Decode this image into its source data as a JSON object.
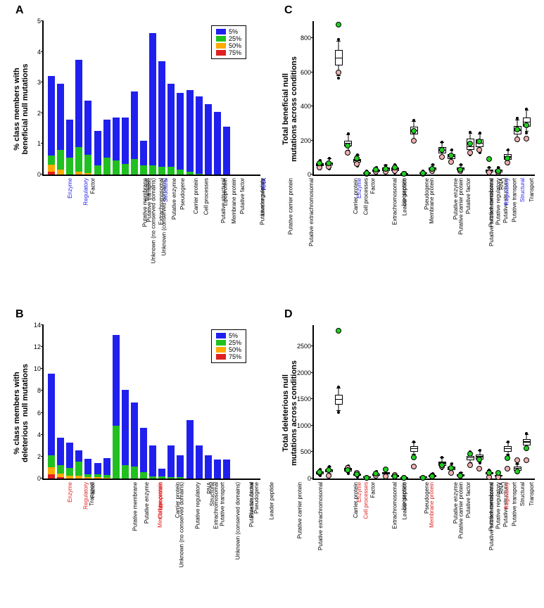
{
  "colors": {
    "blue": "#2020ee",
    "green": "#20c020",
    "orange": "#ffaa00",
    "red": "#e02020",
    "pink": "#eeb0b0",
    "brightgreen": "#20d020",
    "axiscolor": "#000000",
    "highlight_blue": "#2020ee",
    "highlight_red": "#e02020"
  },
  "legend_items": [
    {
      "label": "5%",
      "color": "#2020ee"
    },
    {
      "label": "25%",
      "color": "#20c020"
    },
    {
      "label": "50%",
      "color": "#ffaa00"
    },
    {
      "label": "75%",
      "color": "#e02020"
    }
  ],
  "panelA": {
    "label": "A",
    "ylabel": "% class members with\nbeneficial null mutations",
    "ymax": 5,
    "ytick_step": 1,
    "bars": [
      {
        "cat": "Enzyme",
        "hl": "blue",
        "segs": [
          0.1,
          0.22,
          0.3,
          2.6
        ]
      },
      {
        "cat": "Regulatory",
        "hl": "blue",
        "segs": [
          0,
          0.15,
          0.65,
          2.15
        ]
      },
      {
        "cat": "Unknown (no conserved domains)",
        "segs": [
          0,
          0,
          0.55,
          1.25
        ]
      },
      {
        "cat": "Factor",
        "segs": [
          0,
          0.1,
          0.8,
          2.85
        ]
      },
      {
        "cat": "Unknown (conserved domains)",
        "segs": [
          0,
          0.05,
          0.6,
          1.75
        ]
      },
      {
        "cat": "Putative membrane",
        "segs": [
          0,
          0,
          0.3,
          1.12
        ]
      },
      {
        "cat": "Putative transport",
        "segs": [
          0,
          0,
          0.55,
          1.25
        ]
      },
      {
        "cat": "Extrachromosomal",
        "segs": [
          0,
          0,
          0.45,
          1.4
        ]
      },
      {
        "cat": "Transport",
        "segs": [
          0,
          0,
          0.35,
          1.5
        ]
      },
      {
        "cat": "Putative enzyme",
        "segs": [
          0,
          0,
          0.5,
          2.2
        ]
      },
      {
        "cat": "Structural",
        "hl": "blue",
        "segs": [
          0,
          0,
          0.3,
          0.8
        ]
      },
      {
        "cat": "Pseudogene",
        "segs": [
          0,
          0,
          0.3,
          4.3
        ]
      },
      {
        "cat": "Carrier protein",
        "segs": [
          0,
          0,
          0.25,
          3.45
        ]
      },
      {
        "cat": "Cell processes",
        "segs": [
          0,
          0,
          0.25,
          2.7
        ]
      },
      {
        "cat": "Putative structural",
        "segs": [
          0,
          0,
          0.15,
          2.5
        ]
      },
      {
        "cat": "Membrane protein",
        "segs": [
          0,
          0,
          0.1,
          2.65
        ]
      },
      {
        "cat": "Lipoprotein",
        "segs": [
          0,
          0,
          0.02,
          2.53
        ]
      },
      {
        "cat": "Putative factor",
        "segs": [
          0,
          0,
          0,
          2.3
        ]
      },
      {
        "cat": "Putative regulatory",
        "segs": [
          0,
          0,
          0,
          2.05
        ]
      },
      {
        "cat": "Leader peptide",
        "segs": [
          0,
          0,
          0,
          1.55
        ]
      },
      {
        "cat": "Putative carrier protein",
        "segs": [
          0,
          0,
          0,
          0
        ]
      },
      {
        "cat": "Putative extrachromosomal",
        "segs": [
          0,
          0,
          0,
          0
        ]
      },
      {
        "cat": "RNA",
        "hl": "blue",
        "segs": [
          0,
          0,
          0,
          0
        ]
      }
    ]
  },
  "panelB": {
    "label": "B",
    "ylabel": "% class members with\ndeleterious  null mutations",
    "ymax": 14,
    "ytick_step": 2,
    "bars": [
      {
        "cat": "Enzyme",
        "hl": "red",
        "segs": [
          0.4,
          0.65,
          1.1,
          7.45
        ]
      },
      {
        "cat": "Regulatory",
        "hl": "red",
        "segs": [
          0.15,
          0.3,
          0.75,
          2.55
        ]
      },
      {
        "cat": "Transport",
        "segs": [
          0,
          0.25,
          0.7,
          2.3
        ]
      },
      {
        "cat": "Factor",
        "segs": [
          0,
          0.25,
          1.3,
          1.0
        ]
      },
      {
        "cat": "Putative membrane",
        "segs": [
          0,
          0.1,
          0.3,
          1.4
        ]
      },
      {
        "cat": "Unknown (no conserved domains)",
        "segs": [
          0,
          0.1,
          0.3,
          1.0
        ]
      },
      {
        "cat": "Putative enzyme",
        "segs": [
          0,
          0.05,
          0.25,
          1.55
        ]
      },
      {
        "cat": "Membrane protein",
        "hl": "red",
        "segs": [
          0,
          0,
          4.8,
          8.3
        ]
      },
      {
        "cat": "Cell processes",
        "hl": "red",
        "segs": [
          0,
          0,
          1.2,
          6.9
        ]
      },
      {
        "cat": "Lipoprotein",
        "hl": "red",
        "segs": [
          0,
          0,
          1.1,
          5.85
        ]
      },
      {
        "cat": "Carrier protein",
        "segs": [
          0,
          0,
          0.6,
          4.0
        ]
      },
      {
        "cat": "Putative regulatory",
        "segs": [
          0,
          0,
          0.2,
          2.85
        ]
      },
      {
        "cat": "Unknown (conserved domains)",
        "segs": [
          0,
          0,
          0.2,
          0.7
        ]
      },
      {
        "cat": "Extrachromosomal",
        "segs": [
          0,
          0,
          0.15,
          2.85
        ]
      },
      {
        "cat": "Putative transport",
        "segs": [
          0,
          0,
          0.15,
          2.0
        ]
      },
      {
        "cat": "Structural",
        "segs": [
          0,
          0,
          0,
          5.3
        ]
      },
      {
        "cat": "RNA",
        "segs": [
          0,
          0,
          0,
          3.05
        ]
      },
      {
        "cat": "Putative structural",
        "segs": [
          0,
          0,
          0,
          2.15
        ]
      },
      {
        "cat": "Putative factor",
        "segs": [
          0,
          0,
          0,
          1.75
        ]
      },
      {
        "cat": "Pseudogene",
        "segs": [
          0,
          0,
          0,
          1.75
        ]
      },
      {
        "cat": "Leader peptide",
        "segs": [
          0,
          0,
          0,
          0
        ]
      },
      {
        "cat": "Putative carrier protein",
        "segs": [
          0,
          0,
          0,
          0
        ]
      },
      {
        "cat": "Putative extrachromosomal",
        "segs": [
          0,
          0,
          0,
          0
        ]
      }
    ]
  },
  "panelC": {
    "label": "C",
    "ylabel": "Total beneficial null\nmutations across conditions",
    "ymax": 900,
    "ytick_step": 200,
    "categories": [
      {
        "cat": "Carrier protein",
        "med": 55,
        "q1": 48,
        "q3": 65,
        "lo": 35,
        "hi": 80,
        "pink": 40,
        "green": 65
      },
      {
        "cat": "Cell processes",
        "med": 60,
        "q1": 52,
        "q3": 72,
        "lo": 38,
        "hi": 90,
        "pink": 45,
        "green": 65
      },
      {
        "cat": "Enzyme",
        "hl": "blue",
        "med": 680,
        "q1": 640,
        "q3": 730,
        "lo": 580,
        "hi": 780,
        "pink": 600,
        "green": 880
      },
      {
        "cat": "Extrachromosomal",
        "med": 180,
        "q1": 165,
        "q3": 200,
        "lo": 140,
        "hi": 230,
        "pink": 130,
        "green": 170
      },
      {
        "cat": "Factor",
        "med": 80,
        "q1": 70,
        "q3": 92,
        "lo": 55,
        "hi": 110,
        "pink": 60,
        "green": 95
      },
      {
        "cat": "Leader peptide",
        "med": 8,
        "q1": 5,
        "q3": 12,
        "lo": 2,
        "hi": 18,
        "pink": 5,
        "green": 10
      },
      {
        "cat": "Lipoprotein",
        "med": 22,
        "q1": 17,
        "q3": 30,
        "lo": 10,
        "hi": 40,
        "pink": 15,
        "green": 30
      },
      {
        "cat": "Membrane protein",
        "med": 30,
        "q1": 22,
        "q3": 40,
        "lo": 12,
        "hi": 52,
        "pink": 18,
        "green": 32
      },
      {
        "cat": "Pseudogene",
        "med": 30,
        "q1": 22,
        "q3": 40,
        "lo": 12,
        "hi": 55,
        "pink": 20,
        "green": 40
      },
      {
        "cat": "Putative carrier protein",
        "med": 4,
        "q1": 2,
        "q3": 7,
        "lo": 0,
        "hi": 12,
        "pink": 3,
        "green": 5
      },
      {
        "cat": "Putative enzyme",
        "med": 255,
        "q1": 235,
        "q3": 280,
        "lo": 205,
        "hi": 310,
        "pink": 200,
        "green": 255
      },
      {
        "cat": "Putative extrachromosomal",
        "med": 7,
        "q1": 4,
        "q3": 12,
        "lo": 1,
        "hi": 18,
        "pink": 5,
        "green": 8
      },
      {
        "cat": "Putative factor",
        "med": 32,
        "q1": 25,
        "q3": 42,
        "lo": 15,
        "hi": 55,
        "pink": 22,
        "green": 33
      },
      {
        "cat": "Putative membrane",
        "med": 140,
        "q1": 125,
        "q3": 160,
        "lo": 105,
        "hi": 185,
        "pink": 105,
        "green": 145
      },
      {
        "cat": "Putative regulatory",
        "med": 105,
        "q1": 90,
        "q3": 120,
        "lo": 75,
        "hi": 140,
        "pink": 75,
        "green": 110
      },
      {
        "cat": "Putative structural",
        "med": 32,
        "q1": 25,
        "q3": 42,
        "lo": 15,
        "hi": 55,
        "pink": 22,
        "green": 30
      },
      {
        "cat": "Putative transport",
        "med": 160,
        "q1": 145,
        "q3": 210,
        "lo": 120,
        "hi": 240,
        "pink": 130,
        "green": 180
      },
      {
        "cat": "Regulatory",
        "hl": "blue",
        "med": 180,
        "q1": 160,
        "q3": 205,
        "lo": 135,
        "hi": 235,
        "pink": 145,
        "green": 195
      },
      {
        "cat": "RNA",
        "med": 20,
        "q1": 14,
        "q3": 28,
        "lo": 8,
        "hi": 38,
        "pink": 12,
        "green": 90
      },
      {
        "cat": "Structural",
        "hl": "blue",
        "med": 20,
        "q1": 14,
        "q3": 28,
        "lo": 8,
        "hi": 38,
        "pink": 13,
        "green": 22
      },
      {
        "cat": "Transport",
        "med": 100,
        "q1": 85,
        "q3": 118,
        "lo": 68,
        "hi": 140,
        "pink": 72,
        "green": 95
      },
      {
        "cat": "Unknown (conserved domains)",
        "med": 258,
        "q1": 235,
        "q3": 285,
        "lo": 205,
        "hi": 320,
        "pink": 205,
        "green": 265
      },
      {
        "cat": "Unknown (no conserved domains)",
        "med": 305,
        "q1": 280,
        "q3": 335,
        "lo": 250,
        "hi": 375,
        "pink": 210,
        "green": 290
      }
    ]
  },
  "panelD": {
    "label": "D",
    "ylabel": "Total deleterious null\nmutations across conditions",
    "ymax": 2900,
    "ytick_step": 500,
    "categories": [
      {
        "cat": "Carrier protein",
        "med": 100,
        "q1": 80,
        "q3": 130,
        "lo": 55,
        "hi": 165,
        "pink": 110,
        "green": 125
      },
      {
        "cat": "Cell processes",
        "hl": "red",
        "med": 140,
        "q1": 115,
        "q3": 175,
        "lo": 85,
        "hi": 215,
        "pink": 60,
        "green": 165
      },
      {
        "cat": "Enzyme",
        "hl": "red",
        "med": 1490,
        "q1": 1400,
        "q3": 1580,
        "lo": 1280,
        "hi": 1700,
        "pink": null,
        "green": 2800
      },
      {
        "cat": "Extrachromosomal",
        "med": 160,
        "q1": 135,
        "q3": 195,
        "lo": 100,
        "hi": 235,
        "pink": 200,
        "green": 155
      },
      {
        "cat": "Factor",
        "med": 70,
        "q1": 55,
        "q3": 90,
        "lo": 35,
        "hi": 115,
        "pink": 100,
        "green": 85
      },
      {
        "cat": "Leader peptide",
        "med": 12,
        "q1": 7,
        "q3": 20,
        "lo": 2,
        "hi": 30,
        "pink": 10,
        "green": 12
      },
      {
        "cat": "Lipoprotein",
        "med": 75,
        "q1": 58,
        "q3": 98,
        "lo": 40,
        "hi": 130,
        "pink": 55,
        "green": 95
      },
      {
        "cat": "Membrane protein",
        "hl": "red",
        "med": 95,
        "q1": 75,
        "q3": 120,
        "lo": 50,
        "hi": 150,
        "pink": 40,
        "green": 175
      },
      {
        "cat": "Pseudogene",
        "med": 45,
        "q1": 33,
        "q3": 62,
        "lo": 20,
        "hi": 85,
        "pink": 70,
        "green": 40
      },
      {
        "cat": "Putative carrier protein",
        "med": 10,
        "q1": 6,
        "q3": 17,
        "lo": 2,
        "hi": 28,
        "pink": 8,
        "green": 10
      },
      {
        "cat": "Putative enzyme",
        "med": 555,
        "q1": 510,
        "q3": 610,
        "lo": 450,
        "hi": 680,
        "pink": 230,
        "green": 400
      },
      {
        "cat": "Putative extrachromosomal",
        "med": 12,
        "q1": 7,
        "q3": 20,
        "lo": 2,
        "hi": 30,
        "pink": 10,
        "green": 12
      },
      {
        "cat": "Putative factor",
        "med": 45,
        "q1": 33,
        "q3": 62,
        "lo": 20,
        "hi": 85,
        "pink": 50,
        "green": 45
      },
      {
        "cat": "Putative membrane",
        "med": 280,
        "q1": 245,
        "q3": 325,
        "lo": 200,
        "hi": 380,
        "pink": 230,
        "green": 255
      },
      {
        "cat": "Putative regulatory",
        "med": 190,
        "q1": 160,
        "q3": 225,
        "lo": 125,
        "hi": 270,
        "pink": 100,
        "green": 205
      },
      {
        "cat": "Putative structural",
        "med": 55,
        "q1": 42,
        "q3": 75,
        "lo": 26,
        "hi": 100,
        "pink": 55,
        "green": 55
      },
      {
        "cat": "Putative transport",
        "med": 380,
        "q1": 340,
        "q3": 430,
        "lo": 290,
        "hi": 490,
        "pink": 250,
        "green": 465
      },
      {
        "cat": "Regulatory",
        "hl": "red",
        "med": 400,
        "q1": 355,
        "q3": 455,
        "lo": 300,
        "hi": 515,
        "pink": 190,
        "green": 365
      },
      {
        "cat": "RNA",
        "med": 95,
        "q1": 75,
        "q3": 120,
        "lo": 50,
        "hi": 150,
        "pink": 30,
        "green": 105
      },
      {
        "cat": "Structural",
        "med": 50,
        "q1": 38,
        "q3": 70,
        "lo": 23,
        "hi": 95,
        "pink": 30,
        "green": 100
      },
      {
        "cat": "Transport",
        "med": 555,
        "q1": 510,
        "q3": 610,
        "lo": 450,
        "hi": 680,
        "pink": 180,
        "green": 380
      },
      {
        "cat": "Unknown (conserved domains)",
        "med": 180,
        "q1": 150,
        "q3": 220,
        "lo": 115,
        "hi": 270,
        "pink": 350,
        "green": 130
      },
      {
        "cat": "Unknown (no conserved domains)",
        "med": 680,
        "q1": 625,
        "q3": 745,
        "lo": 560,
        "hi": 830,
        "pink": 350,
        "green": 570
      }
    ]
  }
}
